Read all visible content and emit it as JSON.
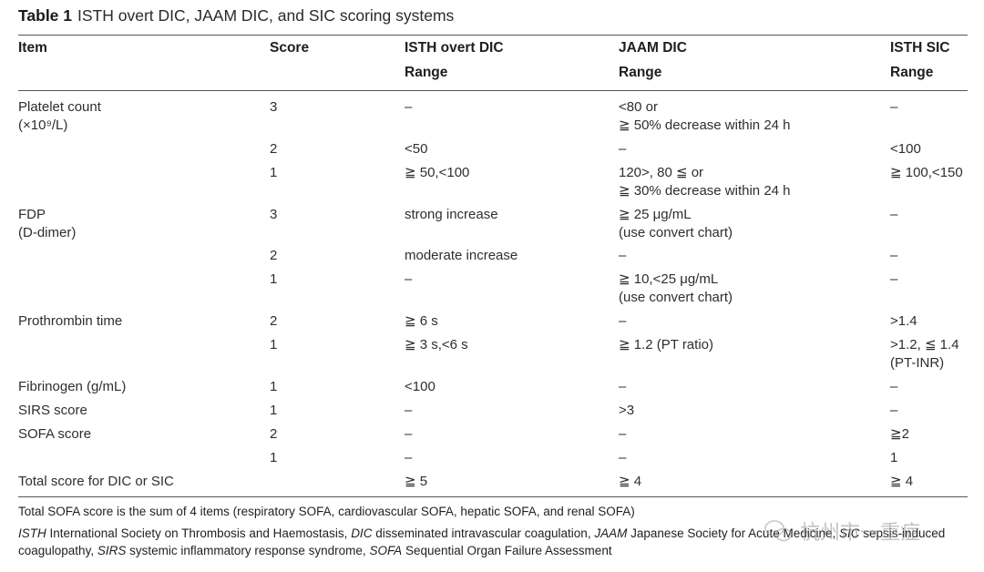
{
  "caption": {
    "label": "Table 1",
    "title": "ISTH overt DIC, JAAM DIC, and SIC scoring systems"
  },
  "header": {
    "item": "Item",
    "score": "Score",
    "isth_overt": "ISTH overt DIC",
    "jaam": "JAAM DIC",
    "isth_sic": "ISTH SIC",
    "range": "Range"
  },
  "rows": [
    {
      "item": [
        "Platelet count",
        "(×10⁹/L)"
      ],
      "score": "3",
      "isth_overt": [
        "–"
      ],
      "jaam": [
        "<80 or",
        "≧ 50% decrease within 24 h"
      ],
      "sic": [
        "–"
      ]
    },
    {
      "item": [],
      "score": "2",
      "isth_overt": [
        "<50"
      ],
      "jaam": [
        "–"
      ],
      "sic": [
        "<100"
      ]
    },
    {
      "item": [],
      "score": "1",
      "isth_overt": [
        "≧ 50,<100"
      ],
      "jaam": [
        "120>, 80 ≦ or",
        "≧ 30% decrease within 24 h"
      ],
      "sic": [
        "≧ 100,<150"
      ]
    },
    {
      "item": [
        "FDP",
        "(D-dimer)"
      ],
      "score": "3",
      "isth_overt": [
        "strong increase"
      ],
      "jaam": [
        "≧ 25 μg/mL",
        "(use convert chart)"
      ],
      "sic": [
        "–"
      ]
    },
    {
      "item": [],
      "score": "2",
      "isth_overt": [
        "moderate increase"
      ],
      "jaam": [
        "–"
      ],
      "sic": [
        "–"
      ]
    },
    {
      "item": [],
      "score": "1",
      "isth_overt": [
        "–"
      ],
      "jaam": [
        "≧ 10,<25 μg/mL",
        "(use convert chart)"
      ],
      "sic": [
        "–"
      ]
    },
    {
      "item": [
        "Prothrombin time"
      ],
      "score": "2",
      "isth_overt": [
        "≧ 6 s"
      ],
      "jaam": [
        "–"
      ],
      "sic": [
        ">1.4"
      ]
    },
    {
      "item": [],
      "score": "1",
      "isth_overt": [
        "≧ 3 s,<6 s"
      ],
      "jaam": [
        "≧ 1.2 (PT ratio)"
      ],
      "sic": [
        ">1.2, ≦ 1.4",
        "(PT-INR)"
      ]
    },
    {
      "item": [
        "Fibrinogen (g/mL)"
      ],
      "score": "1",
      "isth_overt": [
        "<100"
      ],
      "jaam": [
        "–"
      ],
      "sic": [
        "–"
      ]
    },
    {
      "item": [
        "SIRS score"
      ],
      "score": "1",
      "isth_overt": [
        "–"
      ],
      "jaam": [
        ">3"
      ],
      "sic": [
        "–"
      ]
    },
    {
      "item": [
        "SOFA score"
      ],
      "score": "2",
      "isth_overt": [
        "–"
      ],
      "jaam": [
        "–"
      ],
      "sic": [
        "≧2"
      ]
    },
    {
      "item": [],
      "score": "1",
      "isth_overt": [
        "–"
      ],
      "jaam": [
        "–"
      ],
      "sic": [
        "1"
      ]
    },
    {
      "item": [
        "Total score for DIC or SIC"
      ],
      "score": "",
      "isth_overt": [
        "≧ 5"
      ],
      "jaam": [
        "≧ 4"
      ],
      "sic": [
        "≧ 4"
      ]
    }
  ],
  "footnotes": {
    "note1": "Total SOFA score is the sum of 4 items (respiratory SOFA, cardiovascular SOFA, hepatic SOFA, and renal SOFA)",
    "abbr": [
      {
        "term": "ISTH",
        "def": " International Society on Thrombosis and Haemostasis, "
      },
      {
        "term": "DIC",
        "def": " disseminated intravascular coagulation, "
      },
      {
        "term": "JAAM",
        "def": " Japanese Society for Acute Medicine, "
      },
      {
        "term": "SIC",
        "def": " sepsis-induced coagulopathy, "
      },
      {
        "term": "SIRS",
        "def": " systemic inflammatory response syndrome, "
      },
      {
        "term": "SOFA",
        "def": " Sequential Organ Failure Assessment"
      }
    ]
  },
  "watermark": {
    "text": "杭州市一重症",
    "icon": "wechat-icon"
  }
}
